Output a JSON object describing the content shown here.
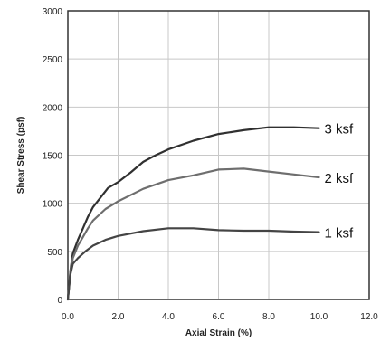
{
  "chart_data": {
    "type": "line",
    "xlabel": "Axial Strain (%)",
    "ylabel": "Shear Stress (psf)",
    "xlim": [
      0,
      12
    ],
    "ylim": [
      0,
      3000
    ],
    "x_ticks": [
      0,
      2,
      4,
      6,
      8,
      10,
      12
    ],
    "x_tick_labels": [
      "0.0",
      "2.0",
      "4.0",
      "6.0",
      "8.0",
      "10.0",
      "12.0"
    ],
    "y_ticks": [
      0,
      500,
      1000,
      1500,
      2000,
      2500,
      3000
    ],
    "y_tick_labels": [
      "0",
      "500",
      "1000",
      "1500",
      "2000",
      "2500",
      "3000"
    ],
    "grid": true,
    "series": [
      {
        "name": "3 ksf",
        "color": "#303030",
        "points": [
          [
            0,
            0
          ],
          [
            0.1,
            300
          ],
          [
            0.2,
            480
          ],
          [
            0.4,
            620
          ],
          [
            0.6,
            740
          ],
          [
            0.8,
            860
          ],
          [
            1.0,
            960
          ],
          [
            1.3,
            1060
          ],
          [
            1.6,
            1160
          ],
          [
            2.0,
            1220
          ],
          [
            2.5,
            1320
          ],
          [
            3.0,
            1430
          ],
          [
            3.5,
            1500
          ],
          [
            4.0,
            1560
          ],
          [
            5.0,
            1650
          ],
          [
            6.0,
            1720
          ],
          [
            7.0,
            1760
          ],
          [
            8.0,
            1790
          ],
          [
            9.0,
            1790
          ],
          [
            10.0,
            1780
          ]
        ]
      },
      {
        "name": "2 ksf",
        "color": "#6e6e6e",
        "points": [
          [
            0,
            0
          ],
          [
            0.1,
            280
          ],
          [
            0.2,
            430
          ],
          [
            0.4,
            560
          ],
          [
            0.6,
            650
          ],
          [
            0.8,
            740
          ],
          [
            1.0,
            820
          ],
          [
            1.5,
            940
          ],
          [
            2.0,
            1020
          ],
          [
            3.0,
            1150
          ],
          [
            4.0,
            1240
          ],
          [
            5.0,
            1290
          ],
          [
            6.0,
            1350
          ],
          [
            7.0,
            1360
          ],
          [
            8.0,
            1330
          ],
          [
            9.0,
            1300
          ],
          [
            10.0,
            1270
          ]
        ]
      },
      {
        "name": "1 ksf",
        "color": "#444444",
        "points": [
          [
            0,
            0
          ],
          [
            0.1,
            260
          ],
          [
            0.2,
            370
          ],
          [
            0.4,
            430
          ],
          [
            0.7,
            500
          ],
          [
            1.0,
            560
          ],
          [
            1.5,
            620
          ],
          [
            2.0,
            660
          ],
          [
            3.0,
            710
          ],
          [
            4.0,
            740
          ],
          [
            5.0,
            740
          ],
          [
            6.0,
            720
          ],
          [
            7.0,
            715
          ],
          [
            8.0,
            715
          ],
          [
            9.0,
            705
          ],
          [
            10.0,
            700
          ]
        ]
      }
    ]
  }
}
